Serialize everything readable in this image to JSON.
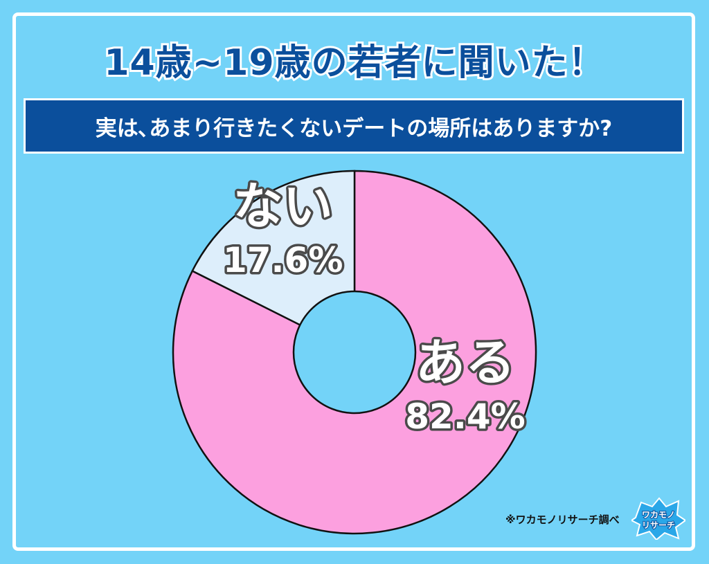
{
  "header": {
    "title": "14歳~19歳の若者に聞いた！",
    "question": "実は､あまり行きたくないデートの場所はありますか?"
  },
  "chart_data": {
    "type": "pie",
    "slices": [
      {
        "label": "ある",
        "value": 82.4,
        "value_label": "82.4%",
        "color": "#fca0df"
      },
      {
        "label": "ない",
        "value": 17.6,
        "value_label": "17.6%",
        "color": "#ddeefb"
      }
    ],
    "hole_color": "#73d3f8"
  },
  "footer": {
    "source": "※ワカモノリサーチ調べ",
    "logo_line1": "ワカモノ",
    "logo_line2": "リサーチ"
  }
}
